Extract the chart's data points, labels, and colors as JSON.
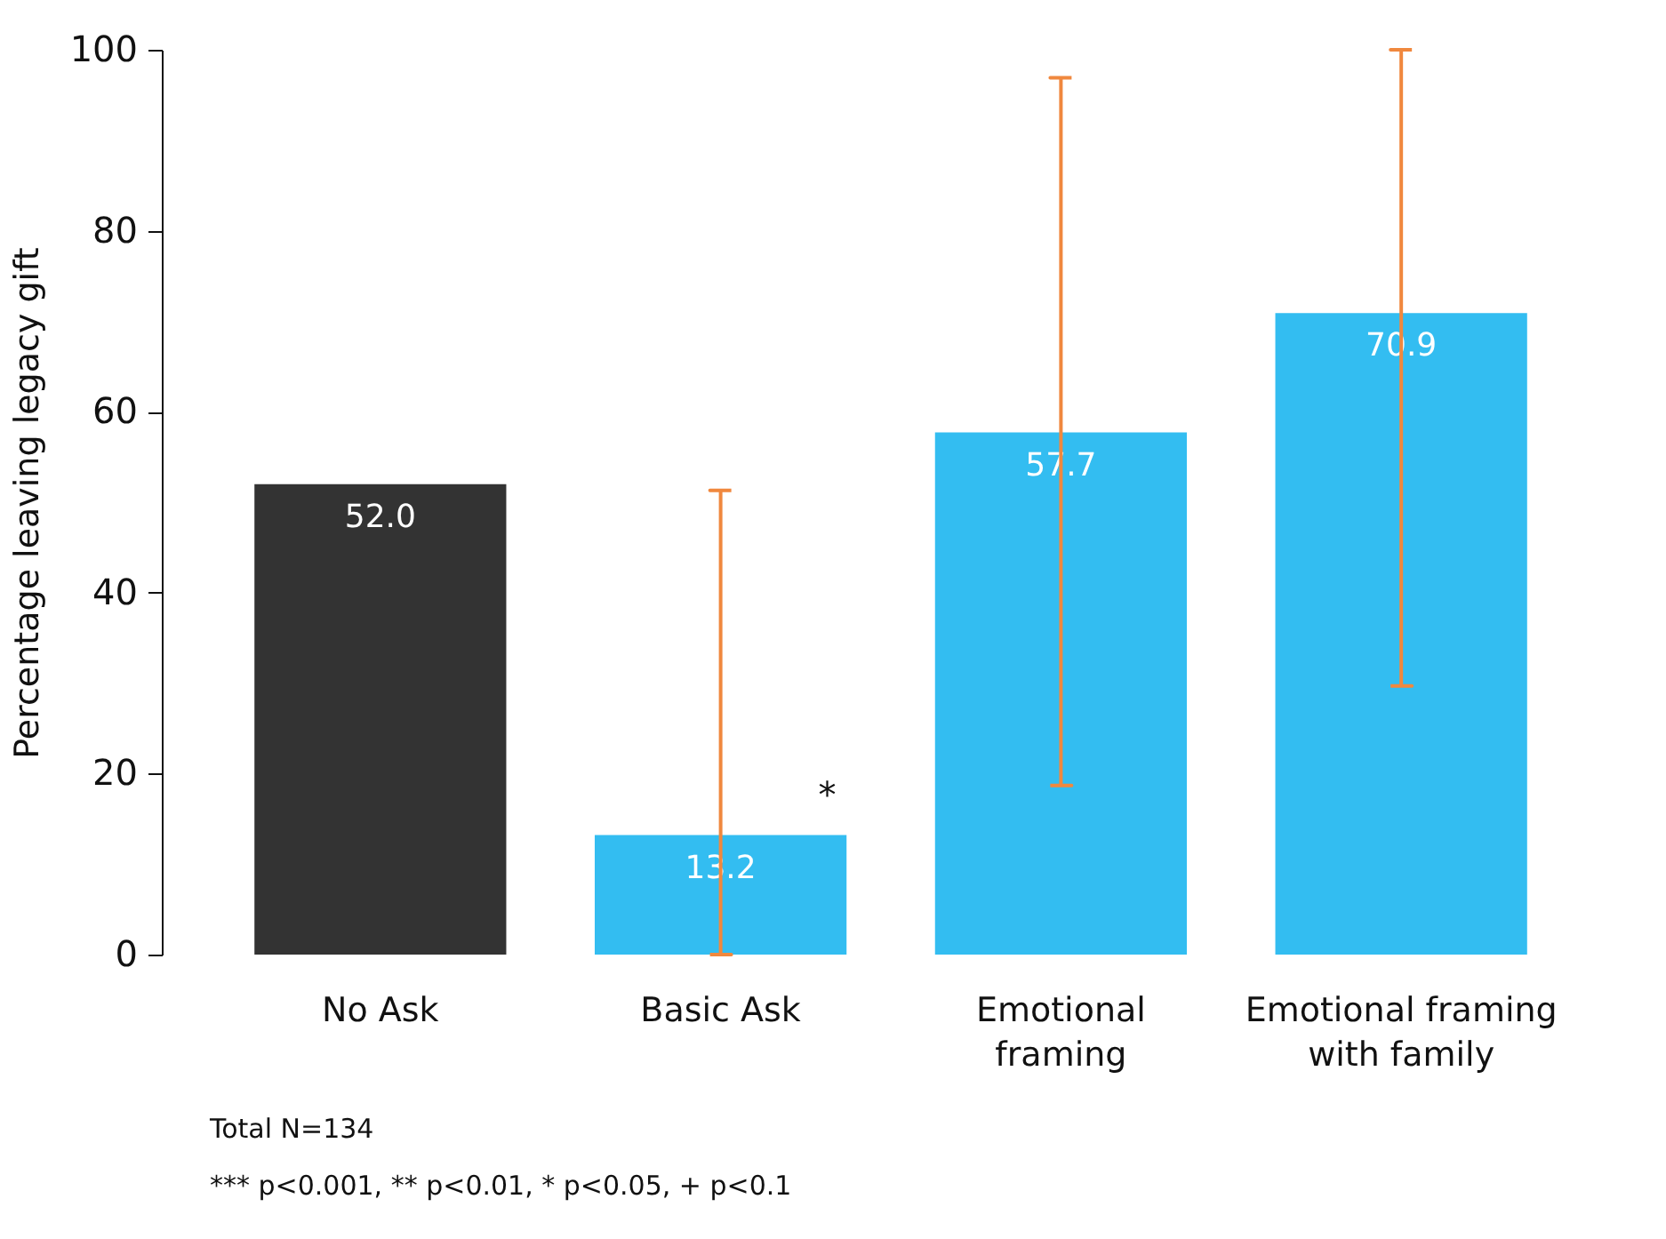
{
  "chart_data": {
    "type": "bar",
    "ylabel": "Percentage leaving legacy gift",
    "categories": [
      "No Ask",
      "Basic Ask",
      "Emotional\nframing",
      "Emotional framing\nwith family"
    ],
    "values": [
      52.0,
      13.2,
      57.7,
      70.9
    ],
    "colors": [
      "#333333",
      "#33bdf1",
      "#33bdf1",
      "#33bdf1"
    ],
    "errors": [
      null,
      [
        0,
        51.3
      ],
      [
        18.7,
        96.9
      ],
      [
        29.7,
        100
      ]
    ],
    "value_labels": [
      "52.0",
      "13.2",
      "57.7",
      "70.9"
    ],
    "ylim": [
      0,
      100
    ],
    "yticks": [
      0,
      20,
      40,
      60,
      80,
      100
    ],
    "grid": false,
    "legend": false,
    "annotations": [
      {
        "text": "*",
        "x": "Basic Ask",
        "y": 15.5
      },
      "Total N=134",
      "*** p<0.001, ** p<0.01,  * p<0.05, + p<0.1"
    ]
  }
}
